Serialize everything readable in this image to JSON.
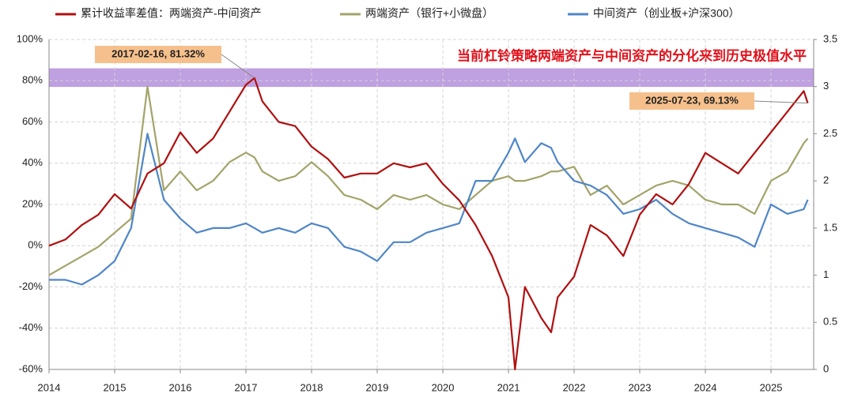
{
  "chart_data": {
    "type": "line",
    "annotation_title": "当前杠铃策略两端资产与中间资产的分化来到历史极值水平",
    "annotations": [
      {
        "text": "2017-02-16, 81.32%"
      },
      {
        "text": "2025-07-23, 69.13%"
      }
    ],
    "highlight_band": {
      "range": [
        77,
        86
      ],
      "color": "#b48fdc"
    },
    "grid": true,
    "x": [
      2014,
      2014.25,
      2014.5,
      2014.75,
      2015,
      2015.25,
      2015.5,
      2015.75,
      2016,
      2016.25,
      2016.5,
      2016.75,
      2017,
      2017.13,
      2017.25,
      2017.5,
      2017.75,
      2018,
      2018.25,
      2018.5,
      2018.75,
      2019,
      2019.25,
      2019.5,
      2019.75,
      2020,
      2020.25,
      2020.5,
      2020.75,
      2021,
      2021.1,
      2021.25,
      2021.5,
      2021.65,
      2021.75,
      2022,
      2022.25,
      2022.5,
      2022.75,
      2023,
      2023.25,
      2023.5,
      2023.75,
      2024,
      2024.25,
      2024.5,
      2024.75,
      2025,
      2025.25,
      2025.5,
      2025.56
    ],
    "xlim": [
      2014,
      2025.65
    ],
    "xticks": [
      2014,
      2015,
      2016,
      2017,
      2018,
      2019,
      2020,
      2021,
      2022,
      2023,
      2024,
      2025
    ],
    "ylim": [
      -60,
      100
    ],
    "yticks": [
      {
        "value": -60,
        "label": "-60%"
      },
      {
        "value": -40,
        "label": "-40%"
      },
      {
        "value": -20,
        "label": "-20%"
      },
      {
        "value": 0,
        "label": "0%"
      },
      {
        "value": 20,
        "label": "20%"
      },
      {
        "value": 40,
        "label": "40%"
      },
      {
        "value": 60,
        "label": "60%"
      },
      {
        "value": 80,
        "label": "80%"
      },
      {
        "value": 100,
        "label": "100%"
      }
    ],
    "y2lim": [
      0,
      3.5
    ],
    "y2ticks": [
      0,
      0.5,
      1,
      1.5,
      2,
      2.5,
      3,
      3.5
    ],
    "series": [
      {
        "name": "累计收益率差值：两端资产-中间资产",
        "color": "#b01010",
        "axis": "y",
        "values": [
          0,
          3,
          10,
          15,
          25,
          18,
          35,
          40,
          55,
          45,
          52,
          65,
          78,
          81.32,
          70,
          60,
          58,
          48,
          42,
          33,
          35,
          35,
          40,
          38,
          40,
          30,
          22,
          10,
          -5,
          -25,
          -60,
          -20,
          -35,
          -42,
          -25,
          -15,
          10,
          5,
          -5,
          15,
          25,
          20,
          30,
          45,
          40,
          35,
          45,
          55,
          65,
          75,
          69.13
        ]
      },
      {
        "name": "两端资产（银行+小微盘）",
        "color": "#a3a36a",
        "axis": "y2",
        "values": [
          1.0,
          1.1,
          1.2,
          1.3,
          1.45,
          1.6,
          3.0,
          1.9,
          2.1,
          1.9,
          2.0,
          2.2,
          2.3,
          2.25,
          2.1,
          2.0,
          2.05,
          2.2,
          2.05,
          1.85,
          1.8,
          1.7,
          1.85,
          1.8,
          1.85,
          1.75,
          1.7,
          1.85,
          2.0,
          2.05,
          2.0,
          2.0,
          2.05,
          2.1,
          2.1,
          2.15,
          1.85,
          1.95,
          1.75,
          1.85,
          1.95,
          2.0,
          1.95,
          1.8,
          1.75,
          1.75,
          1.65,
          2.0,
          2.1,
          2.4,
          2.45
        ]
      },
      {
        "name": "中间资产（创业板+沪深300）",
        "color": "#4f86c6",
        "axis": "y2",
        "values": [
          0.95,
          0.95,
          0.9,
          1.0,
          1.15,
          1.5,
          2.5,
          1.8,
          1.6,
          1.45,
          1.5,
          1.5,
          1.55,
          1.5,
          1.45,
          1.5,
          1.45,
          1.55,
          1.5,
          1.3,
          1.25,
          1.15,
          1.35,
          1.35,
          1.45,
          1.5,
          1.55,
          2.0,
          2.0,
          2.3,
          2.45,
          2.2,
          2.4,
          2.35,
          2.2,
          2.0,
          1.95,
          1.85,
          1.65,
          1.7,
          1.8,
          1.65,
          1.55,
          1.5,
          1.45,
          1.4,
          1.3,
          1.75,
          1.65,
          1.7,
          1.8
        ]
      }
    ]
  }
}
